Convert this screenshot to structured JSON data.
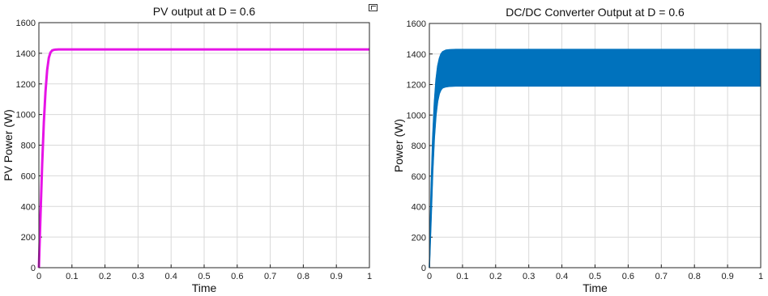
{
  "chart_data": [
    {
      "type": "line",
      "title": "PV output at D = 0.6",
      "xlabel": "Time",
      "ylabel": "PV Power (W)",
      "xlim": [
        0,
        1
      ],
      "ylim": [
        0,
        1600
      ],
      "xticks": [
        "0",
        "0.1",
        "0.2",
        "0.3",
        "0.4",
        "0.5",
        "0.6",
        "0.7",
        "0.8",
        "0.9",
        "1"
      ],
      "yticks": [
        "0",
        "200",
        "400",
        "600",
        "800",
        "1000",
        "1200",
        "1400",
        "1600"
      ],
      "grid": true,
      "color": "#e614e6",
      "series": [
        {
          "x": [
            0,
            0.005,
            0.01,
            0.015,
            0.02,
            0.025,
            0.03,
            0.035,
            0.04,
            0.045,
            0.05,
            0.06,
            0.07,
            0.08,
            0.1,
            0.2,
            0.4,
            0.6,
            0.8,
            1.0
          ],
          "y": [
            0,
            350,
            680,
            950,
            1150,
            1290,
            1370,
            1405,
            1418,
            1422,
            1424,
            1425,
            1425,
            1425,
            1425,
            1425,
            1425,
            1425,
            1425,
            1425
          ]
        }
      ]
    },
    {
      "type": "area",
      "title": "DC/DC Converter Output at D = 0.6",
      "xlabel": "Time",
      "ylabel": "Power (W)",
      "xlim": [
        0,
        1
      ],
      "ylim": [
        0,
        1600
      ],
      "xticks": [
        "0",
        "0.1",
        "0.2",
        "0.3",
        "0.4",
        "0.5",
        "0.6",
        "0.7",
        "0.8",
        "0.9",
        "1"
      ],
      "yticks": [
        "0",
        "200",
        "400",
        "600",
        "800",
        "1000",
        "1200",
        "1400",
        "1600"
      ],
      "grid": true,
      "color": "#0072bd",
      "series": [
        {
          "name": "upper",
          "x": [
            0,
            0.005,
            0.01,
            0.015,
            0.02,
            0.025,
            0.03,
            0.035,
            0.04,
            0.05,
            0.06,
            0.08,
            0.1,
            0.2,
            0.4,
            0.6,
            0.8,
            1.0
          ],
          "y": [
            0,
            500,
            850,
            1080,
            1230,
            1320,
            1370,
            1400,
            1415,
            1425,
            1428,
            1430,
            1430,
            1430,
            1430,
            1430,
            1430,
            1430
          ]
        },
        {
          "name": "lower",
          "x": [
            0,
            0.005,
            0.01,
            0.015,
            0.02,
            0.025,
            0.03,
            0.035,
            0.04,
            0.05,
            0.06,
            0.08,
            0.1,
            0.2,
            0.4,
            0.6,
            0.8,
            1.0
          ],
          "y": [
            0,
            300,
            620,
            850,
            1000,
            1090,
            1140,
            1165,
            1178,
            1185,
            1188,
            1190,
            1190,
            1190,
            1190,
            1190,
            1190,
            1190
          ]
        }
      ]
    }
  ]
}
